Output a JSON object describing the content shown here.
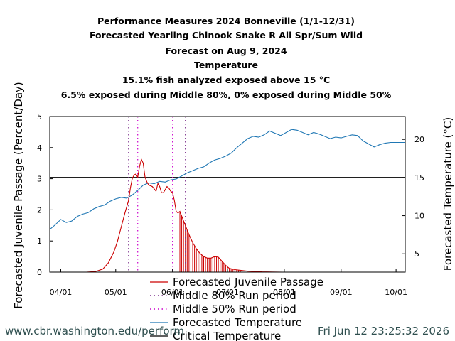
{
  "footer": {
    "url": "www.cbr.washington.edu/perform",
    "timestamp": "Fri Jun 12 23:25:32 2026"
  },
  "colors": {
    "passage": "#cc0000",
    "temperature": "#1f77b4",
    "critical": "#000000",
    "mid80": "#7b2d8b",
    "mid50": "#cc00cc"
  },
  "chart_data": {
    "type": "line",
    "title_lines": [
      "Performance Measures 2024 Bonneville (1/1-12/31)",
      "Forecasted Yearling Chinook Snake R All Spr/Sum Wild",
      "Forecast on Aug 9, 2024",
      "Temperature",
      "15.1% fish analyzed exposed above 15 °C",
      "6.5% exposed during Middle 80%, 0% exposed during Middle 50%"
    ],
    "ylabel_left": "Forecasted Juvenile Passage (Percent/Day)",
    "ylabel_right": "Forecasted Temperature (°C)",
    "ylim_left": [
      0,
      5
    ],
    "yticks_left": [
      0,
      1,
      2,
      3,
      4,
      5
    ],
    "ylim_right": [
      2.6,
      23
    ],
    "yticks_right": [
      5,
      10,
      15,
      20
    ],
    "xlim": [
      "2024-03-26",
      "2024-10-06"
    ],
    "xticks": [
      {
        "date": "2024-04-01",
        "label": "04/01"
      },
      {
        "date": "2024-05-01",
        "label": "05/01"
      },
      {
        "date": "2024-06-01",
        "label": "06/01"
      },
      {
        "date": "2024-07-01",
        "label": "07/01"
      },
      {
        "date": "2024-08-01",
        "label": "08/01"
      },
      {
        "date": "2024-09-01",
        "label": "09/01"
      },
      {
        "date": "2024-10-01",
        "label": "10/01"
      }
    ],
    "critical_temperature": 15,
    "middle80": [
      "2024-05-08",
      "2024-06-08"
    ],
    "middle50": [
      "2024-05-13",
      "2024-06-01"
    ],
    "forecast_date": "2024-08-09",
    "legend": [
      {
        "label": "Forecasted Juvenile Passage",
        "style": "solid",
        "color": "#cc0000"
      },
      {
        "label": "Middle 80% Run period",
        "style": "dotted",
        "color": "#7b2d8b"
      },
      {
        "label": "Middle 50% Run period",
        "style": "dotted",
        "color": "#cc00cc"
      },
      {
        "label": "Forecasted Temperature",
        "style": "solid",
        "color": "#1f77b4"
      },
      {
        "label": "Critical Temperature",
        "style": "solid",
        "color": "#000000"
      }
    ],
    "series": [
      {
        "name": "Forecasted Juvenile Passage",
        "axis": "left",
        "x": [
          "2024-03-26",
          "2024-04-15",
          "2024-04-20",
          "2024-04-24",
          "2024-04-27",
          "2024-04-30",
          "2024-05-02",
          "2024-05-04",
          "2024-05-06",
          "2024-05-08",
          "2024-05-09",
          "2024-05-10",
          "2024-05-11",
          "2024-05-12",
          "2024-05-13",
          "2024-05-14",
          "2024-05-15",
          "2024-05-16",
          "2024-05-17",
          "2024-05-18",
          "2024-05-19",
          "2024-05-21",
          "2024-05-23",
          "2024-05-24",
          "2024-05-25",
          "2024-05-26",
          "2024-05-27",
          "2024-05-28",
          "2024-05-29",
          "2024-05-30",
          "2024-05-31",
          "2024-06-01",
          "2024-06-02",
          "2024-06-03",
          "2024-06-04",
          "2024-06-05",
          "2024-06-06",
          "2024-06-07",
          "2024-06-08",
          "2024-06-10",
          "2024-06-12",
          "2024-06-14",
          "2024-06-16",
          "2024-06-18",
          "2024-06-20",
          "2024-06-22",
          "2024-06-24",
          "2024-06-26",
          "2024-06-28",
          "2024-06-30",
          "2024-07-02",
          "2024-07-05",
          "2024-07-08",
          "2024-07-12",
          "2024-07-20",
          "2024-07-31"
        ],
        "values": [
          0,
          0,
          0.02,
          0.1,
          0.3,
          0.65,
          1.0,
          1.45,
          1.9,
          2.3,
          2.7,
          3.0,
          3.12,
          3.15,
          3.05,
          3.4,
          3.62,
          3.5,
          3.05,
          2.9,
          2.8,
          2.75,
          2.6,
          2.85,
          2.75,
          2.55,
          2.55,
          2.65,
          2.75,
          2.7,
          2.6,
          2.55,
          2.3,
          1.95,
          1.9,
          1.95,
          1.8,
          1.65,
          1.5,
          1.2,
          0.95,
          0.75,
          0.6,
          0.5,
          0.45,
          0.45,
          0.5,
          0.48,
          0.35,
          0.22,
          0.12,
          0.08,
          0.06,
          0.03,
          0.01,
          0
        ]
      },
      {
        "name": "Forecasted Temperature",
        "axis": "right",
        "x": [
          "2024-03-26",
          "2024-03-29",
          "2024-04-01",
          "2024-04-04",
          "2024-04-07",
          "2024-04-10",
          "2024-04-13",
          "2024-04-16",
          "2024-04-19",
          "2024-04-22",
          "2024-04-25",
          "2024-04-28",
          "2024-05-01",
          "2024-05-04",
          "2024-05-07",
          "2024-05-10",
          "2024-05-13",
          "2024-05-16",
          "2024-05-19",
          "2024-05-22",
          "2024-05-25",
          "2024-05-28",
          "2024-05-31",
          "2024-06-03",
          "2024-06-06",
          "2024-06-09",
          "2024-06-12",
          "2024-06-15",
          "2024-06-18",
          "2024-06-21",
          "2024-06-24",
          "2024-06-27",
          "2024-06-30",
          "2024-07-03",
          "2024-07-06",
          "2024-07-09",
          "2024-07-12",
          "2024-07-15",
          "2024-07-18",
          "2024-07-21",
          "2024-07-24",
          "2024-07-27",
          "2024-07-30",
          "2024-08-02",
          "2024-08-05",
          "2024-08-08",
          "2024-08-11",
          "2024-08-14",
          "2024-08-17",
          "2024-08-20",
          "2024-08-23",
          "2024-08-26",
          "2024-08-29",
          "2024-09-01",
          "2024-09-04",
          "2024-09-07",
          "2024-09-10",
          "2024-09-13",
          "2024-09-16",
          "2024-09-19",
          "2024-09-22",
          "2024-09-25",
          "2024-09-28",
          "2024-10-01",
          "2024-10-04",
          "2024-10-06"
        ],
        "values": [
          8.2,
          8.8,
          9.5,
          9.1,
          9.3,
          9.9,
          10.2,
          10.4,
          10.9,
          11.2,
          11.4,
          11.9,
          12.2,
          12.4,
          12.3,
          12.7,
          13.3,
          14.0,
          14.3,
          14.2,
          14.5,
          14.4,
          14.7,
          14.8,
          15.2,
          15.6,
          15.9,
          16.2,
          16.4,
          16.9,
          17.3,
          17.5,
          17.8,
          18.2,
          18.9,
          19.5,
          20.1,
          20.4,
          20.3,
          20.6,
          21.1,
          20.8,
          20.5,
          20.9,
          21.3,
          21.2,
          20.9,
          20.6,
          20.9,
          20.7,
          20.4,
          20.1,
          20.3,
          20.2,
          20.4,
          20.6,
          20.5,
          19.8,
          19.4,
          19.0,
          19.3,
          19.5,
          19.6,
          19.6,
          19.6,
          19.6
        ]
      }
    ]
  }
}
